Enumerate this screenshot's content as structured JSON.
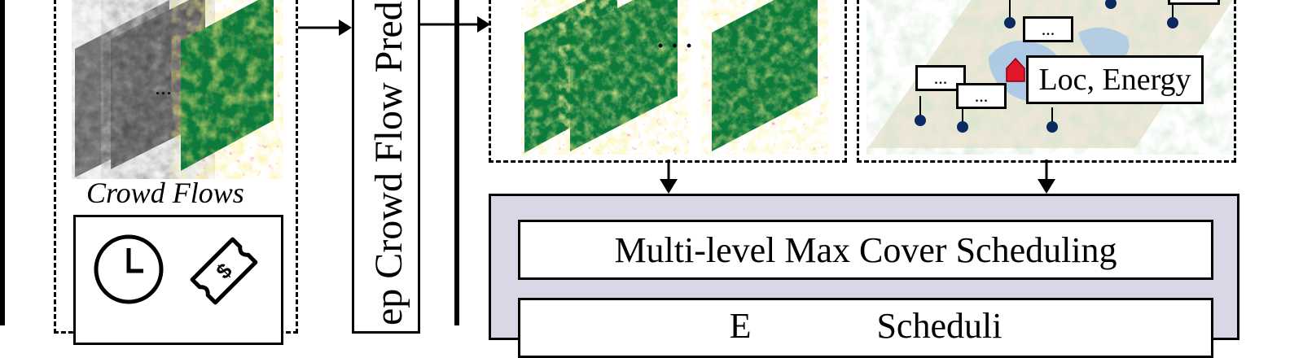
{
  "crowd_flows": {
    "label": "Crowd Flows",
    "dots": "..."
  },
  "predictor": {
    "label": "ep Crowd Flow Pred"
  },
  "heatmaps": {
    "dots": "· · ·"
  },
  "map": {
    "callout_main": "Loc, Energy",
    "callout_dots": "..."
  },
  "scheduling": {
    "box1": "Multi-level Max Cover Scheduling",
    "box2": "E              Scheduli"
  },
  "colors": {
    "panel_fill": "#dad6e6",
    "heat_green": "#0b7a3b",
    "marker_blue": "#0b2a63",
    "marker_red": "#e0182a"
  }
}
